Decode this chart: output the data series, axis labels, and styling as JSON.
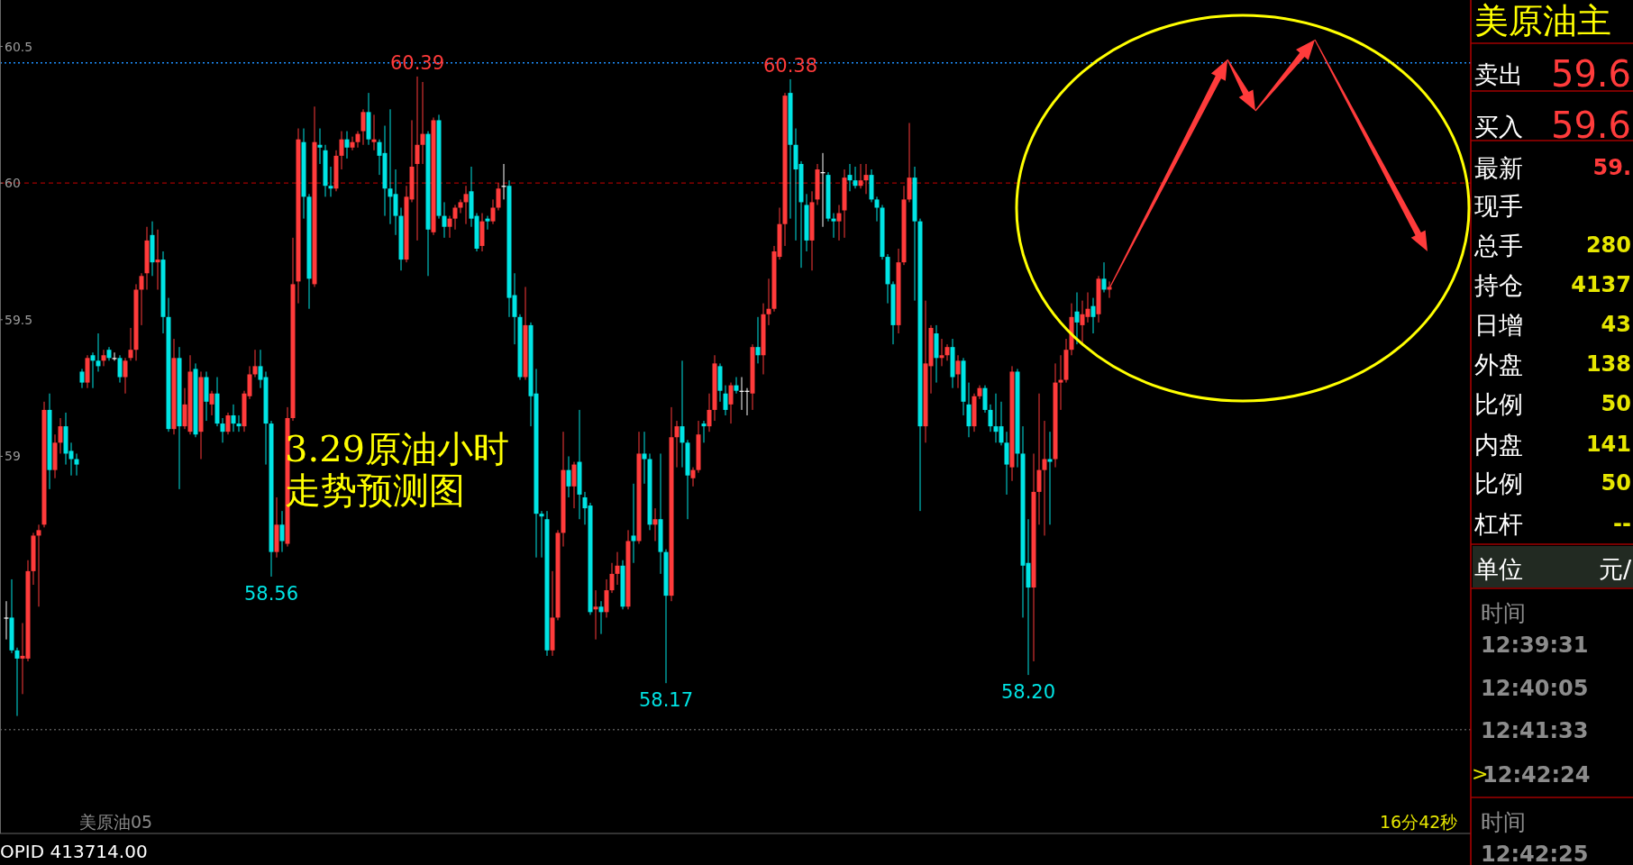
{
  "chart_data": [
    {
      "type": "candlestick",
      "title": "3.29原油小时",
      "subtitle": "走势预测图",
      "categories": [
        null,
        null,
        null,
        null,
        null,
        null,
        null,
        null,
        null,
        null,
        null,
        null,
        null,
        null,
        null,
        null,
        null,
        null,
        null,
        null,
        null,
        null,
        null,
        null,
        null,
        null,
        null,
        null,
        null,
        null,
        null,
        null,
        null,
        null,
        null,
        null,
        null,
        null,
        null,
        null,
        null,
        null,
        null,
        null,
        null,
        null,
        null,
        null,
        null,
        null,
        null,
        null,
        null,
        null,
        null,
        null,
        null,
        null,
        null,
        null,
        null,
        null,
        null,
        null,
        null,
        null,
        null,
        null,
        null,
        null,
        null,
        null,
        null,
        null,
        null,
        null,
        null,
        null,
        null,
        null,
        null,
        null,
        null,
        null,
        null,
        null,
        null,
        null,
        null,
        null,
        null,
        null,
        null,
        null,
        null,
        null,
        null,
        null,
        null,
        null,
        null,
        null,
        null,
        null,
        null,
        null,
        null,
        null,
        null,
        null,
        null,
        null,
        null,
        null,
        null,
        null,
        null,
        null,
        null,
        null,
        null,
        null,
        null,
        null,
        null,
        null,
        null,
        null,
        null,
        null,
        null,
        null,
        null,
        null,
        null,
        null,
        null,
        null,
        null,
        null,
        null,
        null,
        null,
        null,
        null,
        null,
        null,
        null,
        null,
        null,
        null,
        null,
        null,
        null,
        null,
        null,
        null,
        null,
        null,
        null,
        null,
        null,
        null,
        null,
        null,
        null,
        null,
        null,
        null,
        null,
        null,
        null,
        null,
        null,
        null,
        null,
        null,
        null,
        null,
        null,
        null,
        null,
        null,
        null,
        null,
        null,
        null,
        null,
        null,
        null,
        null,
        null,
        null,
        null,
        null,
        null,
        null,
        null,
        null,
        null,
        null,
        null,
        null,
        null,
        null
      ],
      "ohlc": [
        [
          58.41,
          58.47,
          58.33,
          58.41
        ],
        [
          58.41,
          58.55,
          58.28,
          58.29
        ],
        [
          58.29,
          58.3,
          58.05,
          58.26
        ],
        [
          58.26,
          58.39,
          58.13,
          58.27
        ],
        [
          58.26,
          58.62,
          58.25,
          58.58
        ],
        [
          58.58,
          58.72,
          58.53,
          58.71
        ],
        [
          58.71,
          58.75,
          58.45,
          58.73
        ],
        [
          58.75,
          59.2,
          58.74,
          59.17
        ],
        [
          59.17,
          59.23,
          58.88,
          58.95
        ],
        [
          58.95,
          59.08,
          58.92,
          59.05
        ],
        [
          59.05,
          59.14,
          59.01,
          59.11
        ],
        [
          59.11,
          59.16,
          58.97,
          59.01
        ],
        [
          59.02,
          59.05,
          58.93,
          58.99
        ],
        [
          58.99,
          59.01,
          58.93,
          58.97
        ],
        [
          59.31,
          59.32,
          59.25,
          59.27
        ],
        [
          59.27,
          59.37,
          59.25,
          59.36
        ],
        [
          59.37,
          59.38,
          59.25,
          59.35
        ],
        [
          59.35,
          59.45,
          59.31,
          59.33
        ],
        [
          59.35,
          59.39,
          59.33,
          59.37
        ],
        [
          59.39,
          59.4,
          59.35,
          59.36
        ],
        [
          59.36,
          59.38,
          59.35,
          59.36
        ],
        [
          59.36,
          59.37,
          59.27,
          59.29
        ],
        [
          59.29,
          59.36,
          59.23,
          59.35
        ],
        [
          59.36,
          59.47,
          59.35,
          59.39
        ],
        [
          59.39,
          59.63,
          59.35,
          59.61
        ],
        [
          59.61,
          59.67,
          59.48,
          59.66
        ],
        [
          59.67,
          59.84,
          59.61,
          59.79
        ],
        [
          59.81,
          59.86,
          59.66,
          59.71
        ],
        [
          59.71,
          59.83,
          59.61,
          59.72
        ],
        [
          59.72,
          59.75,
          59.45,
          59.51
        ],
        [
          59.51,
          59.58,
          59.09,
          59.1
        ],
        [
          59.1,
          59.43,
          59.08,
          59.36
        ],
        [
          59.36,
          59.4,
          58.88,
          59.11
        ],
        [
          59.11,
          59.25,
          59.1,
          59.19
        ],
        [
          59.09,
          59.37,
          59.08,
          59.31
        ],
        [
          59.32,
          59.34,
          59.07,
          59.08
        ],
        [
          59.09,
          59.31,
          58.99,
          59.29
        ],
        [
          59.29,
          59.31,
          59.13,
          59.2
        ],
        [
          59.19,
          59.24,
          59.15,
          59.23
        ],
        [
          59.23,
          59.29,
          59.11,
          59.12
        ],
        [
          59.12,
          59.14,
          59.05,
          59.09
        ],
        [
          59.09,
          59.16,
          59.08,
          59.15
        ],
        [
          59.15,
          59.19,
          59.09,
          59.12
        ],
        [
          59.12,
          59.15,
          59.09,
          59.11
        ],
        [
          59.11,
          59.24,
          59.09,
          59.23
        ],
        [
          59.22,
          59.33,
          59.21,
          59.3
        ],
        [
          59.3,
          59.39,
          59.29,
          59.33
        ],
        [
          59.33,
          59.39,
          59.25,
          59.28
        ],
        [
          59.29,
          59.31,
          58.97,
          59.12
        ],
        [
          59.12,
          59.13,
          58.56,
          58.65
        ],
        [
          58.65,
          58.85,
          58.63,
          58.75
        ],
        [
          58.75,
          58.8,
          58.65,
          58.69
        ],
        [
          58.68,
          59.18,
          58.67,
          59.14
        ],
        [
          59.14,
          59.8,
          59.13,
          59.63
        ],
        [
          59.64,
          60.2,
          59.56,
          60.16
        ],
        [
          60.15,
          60.2,
          59.87,
          59.95
        ],
        [
          59.95,
          59.96,
          59.54,
          59.65
        ],
        [
          59.63,
          60.28,
          59.62,
          60.15
        ],
        [
          60.14,
          60.2,
          60.07,
          60.13
        ],
        [
          60.12,
          60.14,
          59.95,
          59.99
        ],
        [
          59.99,
          60.06,
          59.95,
          59.98
        ],
        [
          59.98,
          60.12,
          59.97,
          60.1
        ],
        [
          60.1,
          60.19,
          60.05,
          60.16
        ],
        [
          60.16,
          60.19,
          60.09,
          60.13
        ],
        [
          60.13,
          60.17,
          60.12,
          60.15
        ],
        [
          60.15,
          60.19,
          60.13,
          60.18
        ],
        [
          60.19,
          60.27,
          60.14,
          60.26
        ],
        [
          60.26,
          60.33,
          60.14,
          60.16
        ],
        [
          60.15,
          60.25,
          60.12,
          60.16
        ],
        [
          60.15,
          60.16,
          60.03,
          60.1
        ],
        [
          60.11,
          60.21,
          59.88,
          59.98
        ],
        [
          59.98,
          60.27,
          59.85,
          59.95
        ],
        [
          59.96,
          60.05,
          59.81,
          59.88
        ],
        [
          59.88,
          59.91,
          59.68,
          59.72
        ],
        [
          59.72,
          59.99,
          59.71,
          59.95
        ],
        [
          59.94,
          60.23,
          59.93,
          60.06
        ],
        [
          60.07,
          60.39,
          59.79,
          60.14
        ],
        [
          60.14,
          60.37,
          60.07,
          60.18
        ],
        [
          60.18,
          60.19,
          59.66,
          59.83
        ],
        [
          59.82,
          60.24,
          59.81,
          60.23
        ],
        [
          60.23,
          60.25,
          59.87,
          59.88
        ],
        [
          59.88,
          59.93,
          59.8,
          59.84
        ],
        [
          59.84,
          59.88,
          59.8,
          59.87
        ],
        [
          59.87,
          59.92,
          59.83,
          59.91
        ],
        [
          59.91,
          59.94,
          59.89,
          59.93
        ],
        [
          59.93,
          59.99,
          59.85,
          59.96
        ],
        [
          59.97,
          60.06,
          59.84,
          59.87
        ],
        [
          59.88,
          59.89,
          59.75,
          59.76
        ],
        [
          59.77,
          59.89,
          59.75,
          59.86
        ],
        [
          59.87,
          59.88,
          59.83,
          59.86
        ],
        [
          59.86,
          59.94,
          59.85,
          59.91
        ],
        [
          59.91,
          60.0,
          59.9,
          59.98
        ],
        [
          59.99,
          60.07,
          59.94,
          59.99
        ],
        [
          59.99,
          60.01,
          59.51,
          59.58
        ],
        [
          59.59,
          59.67,
          59.41,
          59.51
        ],
        [
          59.51,
          59.52,
          59.28,
          59.29
        ],
        [
          59.29,
          59.62,
          59.28,
          59.48
        ],
        [
          59.48,
          59.49,
          59.11,
          59.22
        ],
        [
          59.23,
          59.32,
          58.63,
          58.79
        ],
        [
          58.79,
          58.8,
          58.63,
          58.78
        ],
        [
          58.77,
          58.8,
          58.27,
          58.29
        ],
        [
          58.29,
          58.58,
          58.27,
          58.41
        ],
        [
          58.41,
          58.73,
          58.4,
          58.72
        ],
        [
          58.72,
          59.09,
          58.67,
          58.95
        ],
        [
          58.95,
          59.0,
          58.85,
          58.89
        ],
        [
          58.89,
          58.98,
          58.81,
          58.97
        ],
        [
          58.98,
          59.17,
          58.77,
          58.86
        ],
        [
          58.85,
          58.87,
          58.75,
          58.81
        ],
        [
          58.82,
          58.83,
          58.42,
          58.43
        ],
        [
          58.44,
          58.51,
          58.33,
          58.45
        ],
        [
          58.45,
          58.47,
          58.35,
          58.43
        ],
        [
          58.43,
          58.55,
          58.41,
          58.51
        ],
        [
          58.51,
          58.61,
          58.5,
          58.57
        ],
        [
          58.57,
          58.65,
          58.53,
          58.6
        ],
        [
          58.6,
          58.62,
          58.44,
          58.45
        ],
        [
          58.45,
          58.73,
          58.44,
          58.69
        ],
        [
          58.71,
          58.9,
          58.61,
          58.69
        ],
        [
          58.69,
          59.09,
          58.68,
          59.01
        ],
        [
          59.01,
          59.09,
          58.9,
          58.99
        ],
        [
          58.99,
          59.01,
          58.73,
          58.75
        ],
        [
          58.75,
          58.81,
          58.69,
          58.77
        ],
        [
          58.77,
          59.01,
          58.57,
          58.65
        ],
        [
          58.65,
          58.66,
          58.17,
          58.49
        ],
        [
          58.49,
          59.18,
          58.47,
          59.07
        ],
        [
          59.07,
          59.13,
          58.96,
          59.11
        ],
        [
          59.11,
          59.35,
          58.96,
          59.05
        ],
        [
          59.05,
          59.06,
          58.77,
          58.93
        ],
        [
          58.92,
          58.96,
          58.89,
          58.95
        ],
        [
          58.95,
          59.13,
          58.94,
          59.08
        ],
        [
          59.12,
          59.13,
          59.05,
          59.11
        ],
        [
          59.11,
          59.23,
          59.09,
          59.17
        ],
        [
          59.17,
          59.37,
          59.13,
          59.34
        ],
        [
          59.33,
          59.34,
          59.2,
          59.24
        ],
        [
          59.23,
          59.26,
          59.15,
          59.17
        ],
        [
          59.19,
          59.27,
          59.12,
          59.26
        ],
        [
          59.26,
          59.29,
          59.23,
          59.24
        ],
        [
          59.24,
          59.29,
          59.17,
          59.24
        ],
        [
          59.24,
          59.25,
          59.15,
          59.24
        ],
        [
          59.23,
          59.41,
          59.17,
          59.4
        ],
        [
          59.4,
          59.51,
          59.34,
          59.37
        ],
        [
          59.37,
          59.56,
          59.3,
          59.52
        ],
        [
          59.52,
          59.65,
          59.48,
          59.54
        ],
        [
          59.54,
          59.77,
          59.53,
          59.75
        ],
        [
          59.73,
          59.91,
          59.72,
          59.85
        ],
        [
          59.85,
          60.33,
          59.77,
          60.32
        ],
        [
          60.33,
          60.38,
          59.87,
          60.14
        ],
        [
          60.14,
          60.2,
          59.79,
          60.05
        ],
        [
          60.07,
          60.08,
          59.69,
          59.93
        ],
        [
          59.92,
          59.96,
          59.75,
          59.79
        ],
        [
          59.79,
          59.97,
          59.68,
          59.93
        ],
        [
          59.94,
          60.07,
          59.92,
          60.05
        ],
        [
          60.04,
          60.11,
          59.84,
          60.04
        ],
        [
          60.03,
          60.04,
          59.86,
          59.87
        ],
        [
          59.87,
          59.89,
          59.8,
          59.86
        ],
        [
          59.86,
          59.92,
          59.79,
          59.89
        ],
        [
          59.9,
          60.05,
          59.8,
          60.02
        ],
        [
          60.03,
          60.07,
          59.97,
          60.01
        ],
        [
          60.01,
          60.06,
          59.98,
          59.99
        ],
        [
          59.99,
          60.07,
          59.98,
          60.01
        ],
        [
          60.01,
          60.07,
          59.96,
          60.03
        ],
        [
          60.03,
          60.05,
          59.93,
          59.94
        ],
        [
          59.94,
          59.95,
          59.86,
          59.91
        ],
        [
          59.91,
          59.92,
          59.72,
          59.73
        ],
        [
          59.73,
          59.74,
          59.56,
          59.63
        ],
        [
          59.63,
          59.64,
          59.41,
          59.48
        ],
        [
          59.48,
          59.76,
          59.45,
          59.71
        ],
        [
          59.71,
          59.99,
          59.7,
          59.94
        ],
        [
          59.94,
          60.22,
          59.93,
          60.02
        ],
        [
          60.02,
          60.06,
          59.57,
          59.86
        ],
        [
          59.86,
          59.87,
          58.8,
          59.11
        ],
        [
          59.11,
          59.57,
          59.05,
          59.34
        ],
        [
          59.33,
          59.48,
          59.23,
          59.47
        ],
        [
          59.45,
          59.48,
          59.27,
          59.36
        ],
        [
          59.36,
          59.43,
          59.33,
          59.37
        ],
        [
          59.37,
          59.41,
          59.35,
          59.4
        ],
        [
          59.4,
          59.43,
          59.25,
          59.29
        ],
        [
          59.3,
          59.37,
          59.25,
          59.35
        ],
        [
          59.35,
          59.36,
          59.15,
          59.2
        ],
        [
          59.19,
          59.27,
          59.07,
          59.11
        ],
        [
          59.11,
          59.23,
          59.09,
          59.22
        ],
        [
          59.22,
          59.26,
          59.21,
          59.25
        ],
        [
          59.25,
          59.26,
          59.16,
          59.17
        ],
        [
          59.17,
          59.19,
          59.09,
          59.11
        ],
        [
          59.11,
          59.23,
          59.05,
          59.09
        ],
        [
          59.11,
          59.2,
          59.04,
          59.05
        ],
        [
          59.05,
          59.09,
          58.86,
          58.97
        ],
        [
          58.96,
          59.33,
          58.91,
          59.31
        ],
        [
          59.31,
          59.32,
          58.96,
          59.01
        ],
        [
          59.01,
          59.11,
          58.41,
          58.6
        ],
        [
          58.61,
          58.77,
          58.2,
          58.52
        ],
        [
          58.52,
          59.01,
          58.25,
          58.87
        ],
        [
          58.87,
          59.23,
          58.75,
          58.95
        ],
        [
          58.95,
          59.13,
          58.71,
          58.99
        ],
        [
          58.99,
          59.09,
          58.75,
          58.98
        ],
        [
          58.99,
          59.34,
          58.96,
          59.27
        ],
        [
          59.27,
          59.37,
          59.17,
          59.28
        ],
        [
          59.28,
          59.43,
          59.27,
          59.39
        ],
        [
          59.39,
          59.56,
          59.37,
          59.51
        ],
        [
          59.53,
          59.6,
          59.41,
          59.49
        ],
        [
          59.48,
          59.57,
          59.41,
          59.52
        ],
        [
          59.51,
          59.6,
          59.49,
          59.54
        ],
        [
          59.55,
          59.58,
          59.45,
          59.51
        ],
        [
          59.52,
          59.66,
          59.49,
          59.65
        ],
        [
          59.65,
          59.71,
          59.6,
          59.61
        ],
        [
          59.61,
          59.64,
          59.58,
          59.62
        ]
      ],
      "ylim": [
        57.62,
        60.67
      ],
      "yticks": [
        59,
        59.5,
        60,
        60.5
      ],
      "tick_labels": "y",
      "ref_lines": [
        {
          "axis": "y",
          "value": 60.44,
          "color": "#1e90ff",
          "line_style": "dotted"
        },
        {
          "axis": "y",
          "value": 60.0,
          "color": "#a00000",
          "line_style": "dashed"
        },
        {
          "axis": "y",
          "value": 58.0,
          "color": "#555555",
          "line_style": "dotted"
        }
      ],
      "annotations": [
        {
          "text": "60.39",
          "y": 60.39
        },
        {
          "text": "60.38",
          "y": 60.38
        },
        {
          "text": "58.56",
          "y": 58.56
        },
        {
          "text": "58.17",
          "y": 58.17
        },
        {
          "text": "58.20",
          "y": 58.2
        },
        "美原油05",
        "16分42秒",
        "OPID 413714.00"
      ]
    },
    {
      "type": "other",
      "title": "美原油主",
      "annotations": [
        "卖出",
        "59.6",
        "买入",
        "59.6",
        "最新",
        "59.",
        "现手",
        "总手",
        "280",
        "持仓",
        "4137",
        "日增",
        "43",
        "外盘",
        "138",
        "比例",
        "50",
        "内盘",
        "141",
        "比例",
        "50",
        "杠杆",
        "--",
        "单位",
        "元/",
        "时间",
        "12:39:31",
        "12:40:05",
        "12:41:33",
        ">",
        "12:42:24",
        "时间",
        "12:42:25"
      ]
    }
  ]
}
